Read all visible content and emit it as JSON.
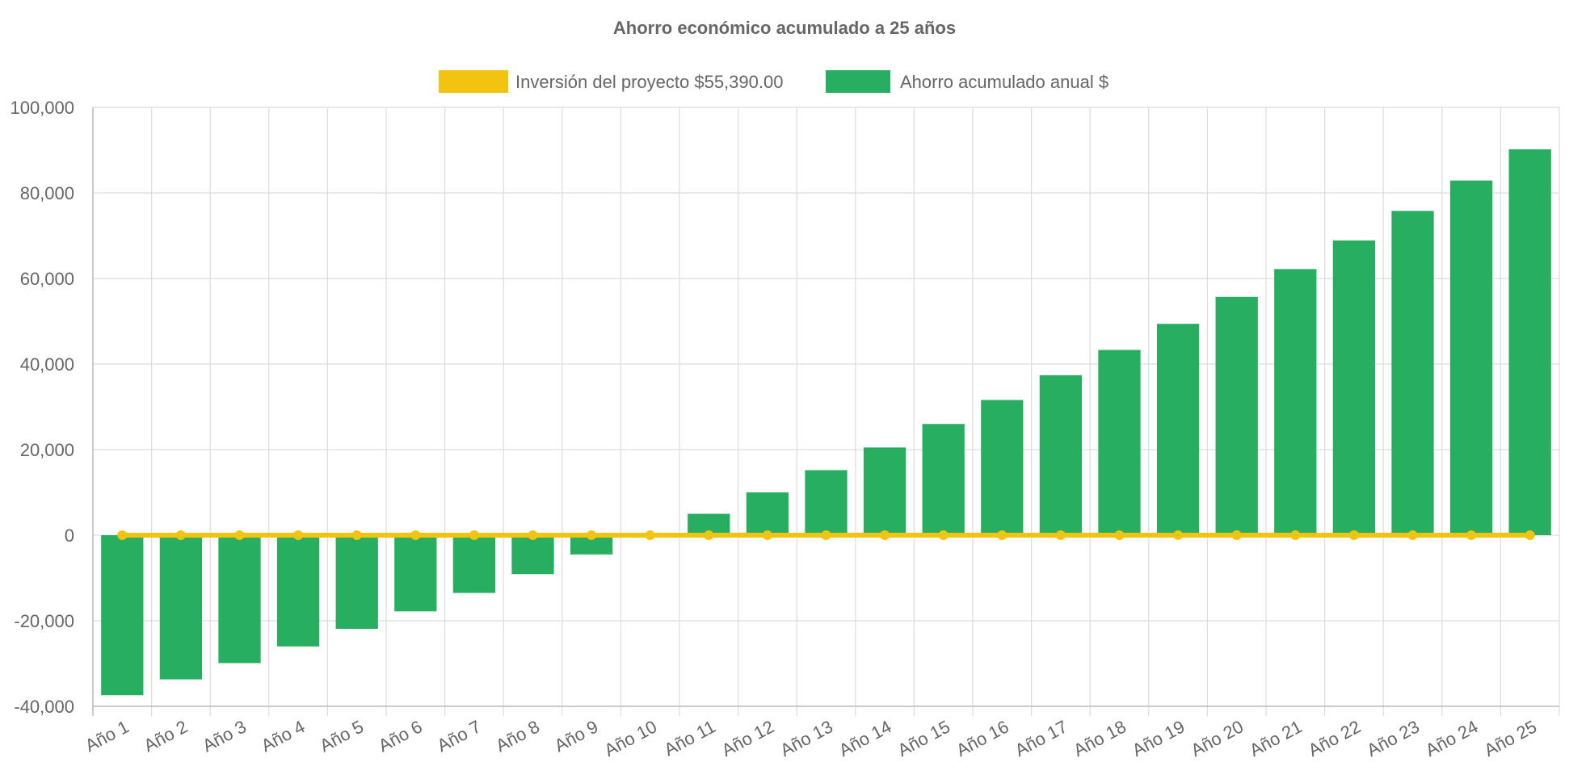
{
  "chart_data": {
    "type": "bar",
    "title": "Ahorro económico acumulado a 25 años",
    "legend_position": "top",
    "grid": true,
    "categories": [
      "Año 1",
      "Año 2",
      "Año 3",
      "Año 4",
      "Año 5",
      "Año 6",
      "Año 7",
      "Año 8",
      "Año 9",
      "Año 10",
      "Año 11",
      "Año 12",
      "Año 13",
      "Año 14",
      "Año 15",
      "Año 16",
      "Año 17",
      "Año 18",
      "Año 19",
      "Año 20",
      "Año 21",
      "Año 22",
      "Año 23",
      "Año 24",
      "Año 25"
    ],
    "ylim": [
      -40000,
      100000
    ],
    "yticks": [
      100000,
      80000,
      60000,
      40000,
      20000,
      0,
      -20000,
      -40000
    ],
    "ytick_labels": [
      "100,000",
      "80,000",
      "60,000",
      "40,000",
      "20,000",
      "0",
      "-20,000",
      "-40,000"
    ],
    "series": [
      {
        "name": "Inversión del proyecto $55,390.00",
        "type": "line",
        "color": "#f2c40f",
        "values": [
          0,
          0,
          0,
          0,
          0,
          0,
          0,
          0,
          0,
          0,
          0,
          0,
          0,
          0,
          0,
          0,
          0,
          0,
          0,
          0,
          0,
          0,
          0,
          0,
          0
        ]
      },
      {
        "name": "Ahorro acumulado anual $",
        "type": "bar",
        "color": "#27ae60",
        "values": [
          -37400,
          -33700,
          -29900,
          -26000,
          -21900,
          -17800,
          -13500,
          -9100,
          -4500,
          0,
          5000,
          10000,
          15200,
          20500,
          26000,
          31600,
          37400,
          43300,
          49400,
          55700,
          62200,
          68900,
          75800,
          82900,
          90200
        ]
      }
    ]
  }
}
